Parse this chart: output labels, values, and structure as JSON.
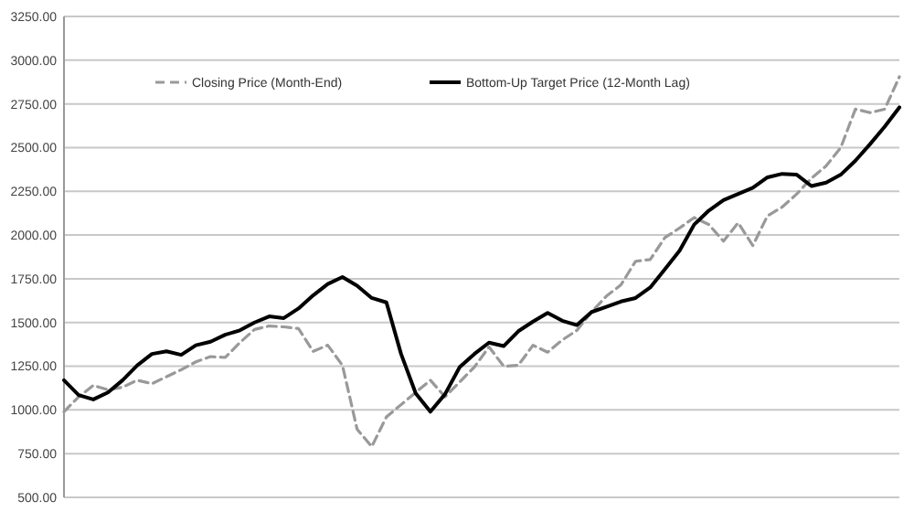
{
  "chart_data": {
    "type": "line",
    "categories": [
      null,
      null,
      null,
      null,
      null,
      null,
      null,
      null,
      null,
      null,
      null,
      null,
      null,
      null,
      null,
      null,
      null,
      null,
      null,
      null,
      null,
      null,
      null,
      null,
      null,
      null,
      null,
      null,
      null,
      null,
      null,
      null,
      null,
      null,
      null,
      null,
      null,
      null,
      null,
      null,
      null,
      null,
      null,
      null,
      null,
      null,
      null,
      null,
      null,
      null,
      null,
      null,
      null,
      null,
      null,
      null,
      null,
      null
    ],
    "series": [
      {
        "name": "Closing Price (Month-End)",
        "color": "#999999",
        "line_style": "dashed",
        "values": [
          990,
          1075,
          1140,
          1115,
          1130,
          1170,
          1150,
          1190,
          1230,
          1275,
          1305,
          1300,
          1385,
          1460,
          1480,
          1475,
          1465,
          1335,
          1370,
          1255,
          890,
          790,
          960,
          1030,
          1100,
          1170,
          1075,
          1160,
          1245,
          1360,
          1250,
          1255,
          1370,
          1330,
          1400,
          1455,
          1560,
          1650,
          1715,
          1850,
          1860,
          1985,
          2040,
          2100,
          2060,
          1965,
          2070,
          1940,
          2110,
          2160,
          2235,
          2325,
          2395,
          2500,
          2720,
          2700,
          2720,
          2905
        ]
      },
      {
        "name": "Bottom-Up Target Price (12-Month Lag)",
        "color": "#000000",
        "line_style": "solid",
        "values": [
          1170,
          1085,
          1060,
          1100,
          1170,
          1255,
          1320,
          1335,
          1315,
          1370,
          1390,
          1430,
          1455,
          1500,
          1535,
          1525,
          1580,
          1655,
          1720,
          1760,
          1710,
          1640,
          1615,
          1320,
          1095,
          990,
          1090,
          1245,
          1320,
          1385,
          1365,
          1450,
          1505,
          1555,
          1510,
          1485,
          1560,
          1590,
          1620,
          1640,
          1700,
          1805,
          1910,
          2060,
          2140,
          2200,
          2235,
          2270,
          2330,
          2350,
          2345,
          2280,
          2300,
          2345,
          2425,
          2520,
          2620,
          2730
        ]
      }
    ],
    "ylim": [
      500,
      3250
    ],
    "yticks": [
      {
        "value": 500,
        "label": "500.00"
      },
      {
        "value": 750,
        "label": "750.00"
      },
      {
        "value": 1000,
        "label": "1000.00"
      },
      {
        "value": 1250,
        "label": "1250.00"
      },
      {
        "value": 1500,
        "label": "1500.00"
      },
      {
        "value": 1750,
        "label": "1750.00"
      },
      {
        "value": 2000,
        "label": "2000.00"
      },
      {
        "value": 2250,
        "label": "2250.00"
      },
      {
        "value": 2500,
        "label": "2500.00"
      },
      {
        "value": 2750,
        "label": "2750.00"
      },
      {
        "value": 3000,
        "label": "3000.00"
      },
      {
        "value": 3250,
        "label": "3250.00"
      }
    ],
    "grid": "y",
    "legend": "top",
    "marker": "none"
  }
}
